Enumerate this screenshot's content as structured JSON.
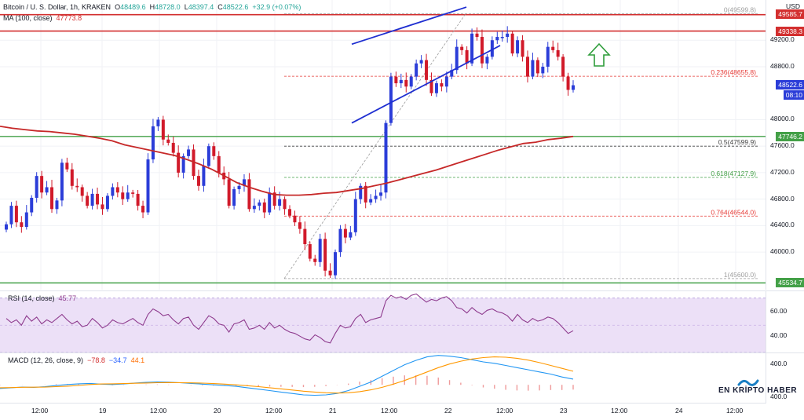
{
  "header": {
    "symbol": "Bitcoin / U. S. Dollar, 1h, KRAKEN",
    "o_label": "O",
    "o": "48489.6",
    "h_label": "H",
    "h": "48728.0",
    "l_label": "L",
    "l": "48397.4",
    "c_label": "C",
    "c": "48522.6",
    "change": "+32.9 (+0.07%)",
    "currency": "USD"
  },
  "ma": {
    "label": "MA (100, close)",
    "value": "47773.8"
  },
  "rsi": {
    "label": "RSI (14, close)",
    "value": "45.77",
    "ticks": [
      "60.00",
      "40.00"
    ]
  },
  "macd": {
    "label": "MACD (12, 26, close, 9)",
    "v1": "−78.8",
    "v2": "−34.7",
    "v3": "44.1",
    "ticks": [
      "400.0",
      "400.0"
    ]
  },
  "price_axis": [
    "49200.0",
    "48800.0",
    "48000.0",
    "47600.0",
    "47200.0",
    "46800.0",
    "46400.0",
    "46000.0"
  ],
  "tags": {
    "top_resistance": "49585.7",
    "resistance": "49338.3",
    "last_price": "48522.6",
    "countdown": "08:10",
    "ma_tag": "47746.2",
    "support": "45534.7"
  },
  "fib": [
    "0(49599.8)",
    "0.236(48655.8)",
    "0.5(47599.9)",
    "0.618(47127.9)",
    "0.764(46544.0)",
    "1(45600.0)"
  ],
  "time_axis": [
    "12:00",
    "19",
    "12:00",
    "20",
    "12:00",
    "21",
    "12:00",
    "22",
    "12:00",
    "23",
    "12:00",
    "24",
    "12:00"
  ],
  "brand": {
    "left": "EN KRİPTO",
    "right": "HABER"
  },
  "colors": {
    "up": "#2b3dd8",
    "down": "#d11a2a",
    "ma": "#c62828",
    "support_line": "#43a047",
    "resistance_line": "#d32f2f",
    "channel": "#1f2fd1",
    "rsi_band": "#ece0f7",
    "rsi_line": "#8e3b8e",
    "macd_line": "#2196f3",
    "signal_line": "#ff9800",
    "arrow": "#2e9d3a"
  },
  "chart_data": {
    "type": "candlestick",
    "title": "Bitcoin / U. S. Dollar, 1h, KRAKEN",
    "ylabel": "USD",
    "ylim": [
      45480,
      49760
    ],
    "x": [
      "12:00",
      "19",
      "12:00",
      "20",
      "12:00",
      "21",
      "12:00",
      "22",
      "12:00",
      "23",
      "12:00",
      "24",
      "12:00"
    ],
    "closes": [
      46420,
      46700,
      46450,
      46380,
      46600,
      46820,
      47150,
      46900,
      46980,
      46650,
      46780,
      47350,
      47250,
      47000,
      46980,
      46850,
      46700,
      46880,
      46720,
      46650,
      46850,
      46980,
      46900,
      46800,
      46900,
      46880,
      46700,
      46600,
      47400,
      47900,
      48000,
      47700,
      47650,
      47500,
      47200,
      47450,
      47550,
      47150,
      47000,
      47300,
      47600,
      47450,
      47200,
      47100,
      46700,
      46950,
      47000,
      47100,
      46650,
      46700,
      46750,
      46600,
      46900,
      46700,
      46800,
      46650,
      46550,
      46450,
      46350,
      46120,
      45900,
      45850,
      46200,
      45720,
      45650,
      46000,
      46350,
      46220,
      46300,
      46800,
      47000,
      46750,
      46800,
      46850,
      46900,
      47950,
      48650,
      48550,
      48600,
      48500,
      48650,
      48850,
      48900,
      48600,
      48400,
      48550,
      48500,
      48650,
      48750,
      49100,
      49050,
      48850,
      49300,
      49250,
      48850,
      48950,
      49200,
      49250,
      49250,
      49300,
      49000,
      49200,
      48950,
      48650,
      48900,
      48700,
      48800,
      49100,
      49050,
      48950,
      48650,
      48450,
      48520
    ],
    "ma100": [
      47900,
      47870,
      47850,
      47830,
      47820,
      47800,
      47780,
      47750,
      47720,
      47680,
      47620,
      47580,
      47540,
      47500,
      47460,
      47400,
      47330,
      47250,
      47150,
      47050,
      46980,
      46920,
      46870,
      46860,
      46860,
      46870,
      46890,
      46900,
      46930,
      46960,
      47000,
      47040,
      47090,
      47140,
      47190,
      47240,
      47300,
      47360,
      47420,
      47480,
      47540,
      47590,
      47640,
      47660,
      47700,
      47720,
      47747
    ],
    "fib_levels": [
      {
        "ratio": 0,
        "price": 49599.8
      },
      {
        "ratio": 0.236,
        "price": 48655.8
      },
      {
        "ratio": 0.5,
        "price": 47599.9
      },
      {
        "ratio": 0.618,
        "price": 47127.9
      },
      {
        "ratio": 0.764,
        "price": 46544.0
      },
      {
        "ratio": 1,
        "price": 45600.0
      }
    ],
    "levels": {
      "resistance_1": 49585.7,
      "resistance_2": 49338.3,
      "support_ma": 47746.2,
      "support": 45534.7,
      "last": 48522.6
    },
    "rsi": {
      "ylim": [
        30,
        75
      ],
      "band": [
        30,
        70
      ],
      "values": [
        55,
        52,
        54,
        50,
        57,
        53,
        56,
        51,
        54,
        52,
        55,
        58,
        54,
        51,
        53,
        49,
        50,
        55,
        52,
        48,
        50,
        54,
        52,
        51,
        53,
        55,
        52,
        50,
        58,
        62,
        60,
        57,
        58,
        54,
        51,
        55,
        56,
        50,
        47,
        52,
        57,
        55,
        51,
        50,
        45,
        51,
        52,
        54,
        47,
        48,
        50,
        47,
        52,
        48,
        50,
        47,
        45,
        44,
        42,
        40,
        39,
        43,
        41,
        38,
        37,
        44,
        50,
        48,
        49,
        55,
        58,
        52,
        54,
        55,
        56,
        68,
        72,
        70,
        71,
        69,
        72,
        73,
        70,
        67,
        69,
        68,
        70,
        71,
        68,
        63,
        62,
        59,
        63,
        60,
        58,
        61,
        62,
        60,
        59,
        57,
        53,
        58,
        54,
        52,
        55,
        53,
        54,
        56,
        55,
        52,
        48,
        44,
        46
      ]
    },
    "macd": {
      "ylim": [
        -260,
        440
      ],
      "macd": [
        -50,
        -40,
        -30,
        -35,
        -25,
        -10,
        5,
        15,
        20,
        10,
        5,
        12,
        25,
        35,
        40,
        38,
        30,
        20,
        10,
        0,
        -10,
        -20,
        -40,
        -60,
        -80,
        -100,
        -120,
        -140,
        -145,
        -140,
        -120,
        -80,
        -20,
        40,
        120,
        200,
        280,
        340,
        390,
        410,
        400,
        380,
        350,
        320,
        300,
        270,
        240,
        210,
        180,
        150,
        110,
        80
      ],
      "signal": [
        -40,
        -38,
        -34,
        -33,
        -31,
        -25,
        -18,
        -8,
        5,
        12,
        15,
        18,
        22,
        26,
        30,
        32,
        30,
        28,
        24,
        18,
        10,
        0,
        -12,
        -25,
        -40,
        -55,
        -72,
        -88,
        -100,
        -110,
        -115,
        -110,
        -95,
        -70,
        -35,
        10,
        60,
        120,
        180,
        240,
        290,
        330,
        360,
        380,
        390,
        385,
        370,
        345,
        310,
        270,
        230,
        190
      ]
    }
  }
}
